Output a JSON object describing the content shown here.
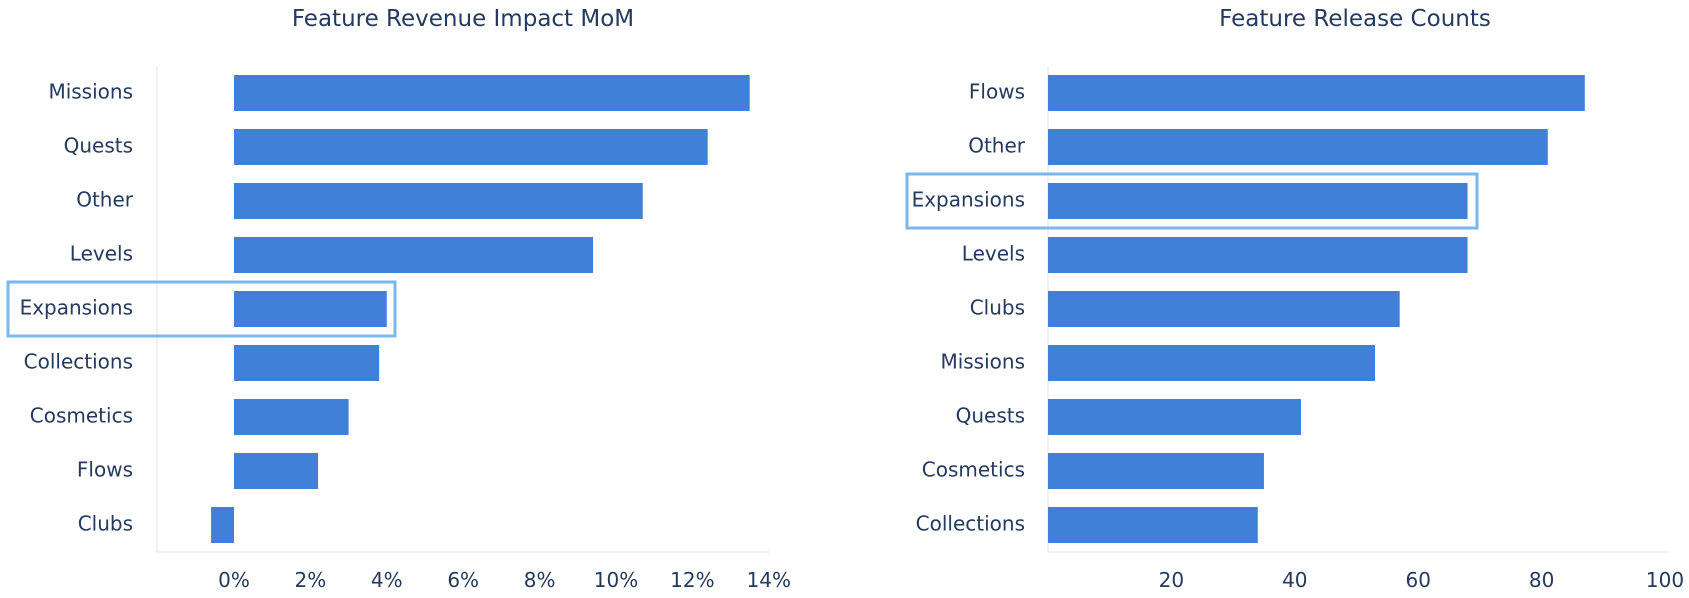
{
  "chart_data": [
    {
      "type": "bar",
      "orientation": "horizontal",
      "title": "Feature Revenue Impact MoM",
      "xlabel": "",
      "ylabel": "",
      "categories": [
        "Missions",
        "Quests",
        "Other",
        "Levels",
        "Expansions",
        "Collections",
        "Cosmetics",
        "Flows",
        "Clubs"
      ],
      "values": [
        13.5,
        12.4,
        10.7,
        9.4,
        4.0,
        3.8,
        3.0,
        2.2,
        -0.6
      ],
      "unit": "%",
      "xlim": [
        -2,
        14
      ],
      "xticks": [
        "0%",
        "2%",
        "4%",
        "6%",
        "8%",
        "10%",
        "12%",
        "14%"
      ],
      "highlight": "Expansions",
      "bar_color": "#4080d9",
      "highlight_color": "#7ab8ec"
    },
    {
      "type": "bar",
      "orientation": "horizontal",
      "title": "Feature Release Counts",
      "xlabel": "",
      "ylabel": "",
      "categories": [
        "Flows",
        "Other",
        "Expansions",
        "Levels",
        "Clubs",
        "Missions",
        "Quests",
        "Cosmetics",
        "Collections"
      ],
      "values": [
        87,
        81,
        68,
        68,
        57,
        53,
        41,
        35,
        34
      ],
      "xlim": [
        0,
        100
      ],
      "xticks": [
        "20",
        "40",
        "60",
        "80",
        "100"
      ],
      "highlight": "Expansions",
      "bar_color": "#4080d9",
      "highlight_color": "#7ab8ec"
    }
  ]
}
